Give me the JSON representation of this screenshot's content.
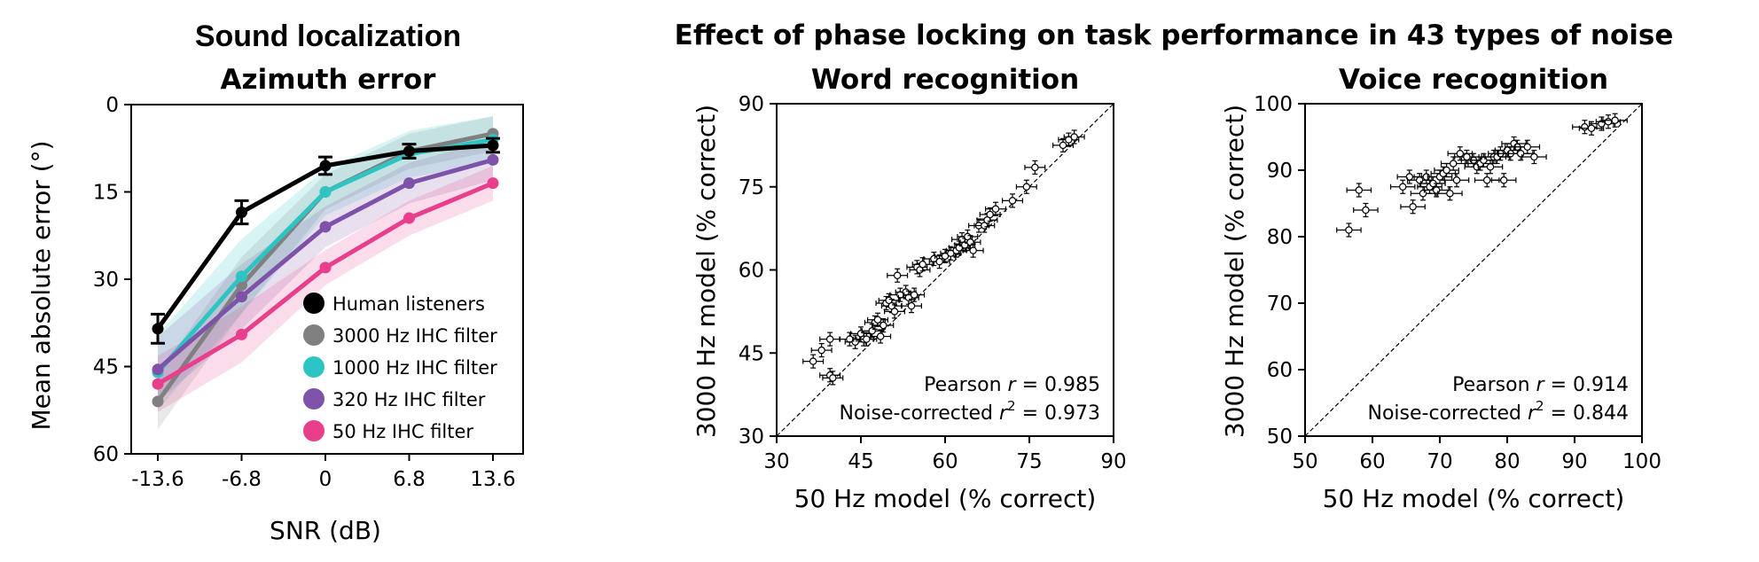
{
  "header": {
    "left_title": "Sound localization",
    "right_title": "Effect of phase locking on task performance in 43 types of noise"
  },
  "chart_data": [
    {
      "type": "line",
      "title": "Azimuth error",
      "xlabel": "SNR (dB)",
      "ylabel": "Mean absolute error (°)",
      "categories": [
        "-13.6",
        "-6.8",
        "0",
        "6.8",
        "13.6"
      ],
      "ylim": [
        60,
        0
      ],
      "yticks": [
        "0",
        "15",
        "30",
        "45",
        "60"
      ],
      "legend": "lower-right",
      "grid": false,
      "series": [
        {
          "name": "Human listeners",
          "color": "#000000",
          "values": [
            38.5,
            18.5,
            10.5,
            8.0,
            7.0
          ],
          "errors": [
            2.5,
            2.0,
            1.5,
            1.2,
            1.2
          ]
        },
        {
          "name": "3000 Hz IHC filter",
          "color": "#808080",
          "values": [
            51,
            31,
            15,
            8,
            5
          ],
          "band": 3.0
        },
        {
          "name": "1000 Hz IHC filter",
          "color": "#2ec4c4",
          "values": [
            46,
            29.5,
            15,
            8.5,
            6
          ],
          "band": 4.0
        },
        {
          "name": "320 Hz IHC filter",
          "color": "#7d52a8",
          "values": [
            45.5,
            33,
            21,
            13.5,
            9.5
          ],
          "band": 3.5
        },
        {
          "name": "50 Hz IHC filter",
          "color": "#e83e8c",
          "values": [
            48,
            39.5,
            28,
            19.5,
            13.5
          ],
          "band": 3.0
        }
      ]
    },
    {
      "type": "scatter",
      "title": "Word recognition",
      "xlabel": "50 Hz model (% correct)",
      "ylabel": "3000 Hz model (% correct)",
      "xlim": [
        30,
        90
      ],
      "ylim": [
        30,
        90
      ],
      "xticks": [
        "30",
        "45",
        "60",
        "75",
        "90"
      ],
      "yticks": [
        "30",
        "45",
        "60",
        "75",
        "90"
      ],
      "annotation_line1_prefix": "Pearson ",
      "annotation_line1_var": "r",
      "annotation_line1_value": " = 0.985",
      "annotation_line2_prefix": "Noise-corrected ",
      "annotation_line2_var": "r",
      "annotation_line2_exp": "2",
      "annotation_line2_value": " = 0.973",
      "x": [
        36.5,
        38,
        39.5,
        39.5,
        40,
        43,
        44,
        45,
        45.5,
        46,
        47,
        47.5,
        48,
        48.5,
        49,
        49.5,
        50,
        50.5,
        51,
        51.5,
        52,
        53,
        53.5,
        54,
        54.5,
        55,
        55.5,
        56,
        58,
        59,
        60,
        61,
        62,
        62.5,
        63,
        63.5,
        64,
        64.5,
        65,
        66,
        67,
        67.5,
        68,
        69,
        72,
        74.5,
        76,
        81,
        82,
        83
      ],
      "y": [
        43.5,
        45.5,
        47.5,
        41,
        40.5,
        47.5,
        47,
        48.5,
        47.5,
        47.5,
        49,
        50.5,
        51,
        48,
        50,
        54,
        54.5,
        53.5,
        52.5,
        59,
        55.5,
        56,
        55,
        53.5,
        55.5,
        60.5,
        60,
        61,
        62,
        61.5,
        62.5,
        63,
        63.5,
        64,
        65.5,
        64.5,
        66,
        65,
        63.5,
        68,
        68,
        69,
        70,
        71,
        72.5,
        75,
        78.5,
        82.5,
        83.5,
        84
      ],
      "x_err": 1.8,
      "y_err": 1.2
    },
    {
      "type": "scatter",
      "title": "Voice recognition",
      "xlabel": "50 Hz model (% correct)",
      "ylabel": "3000 Hz model (% correct)",
      "xlim": [
        50,
        100
      ],
      "ylim": [
        50,
        100
      ],
      "xticks": [
        "50",
        "60",
        "70",
        "80",
        "90",
        "100"
      ],
      "yticks": [
        "50",
        "60",
        "70",
        "80",
        "90",
        "100"
      ],
      "annotation_line1_prefix": "Pearson ",
      "annotation_line1_var": "r",
      "annotation_line1_value": " = 0.914",
      "annotation_line2_prefix": "Noise-corrected ",
      "annotation_line2_var": "r",
      "annotation_line2_exp": "2",
      "annotation_line2_value": " = 0.844",
      "x": [
        56.5,
        58,
        59,
        64.5,
        65.5,
        66,
        67,
        67.5,
        68,
        68.5,
        69,
        69.5,
        70,
        70.5,
        71,
        71.5,
        72,
        72.5,
        73,
        74,
        75,
        75.5,
        76,
        76.5,
        77,
        77.5,
        78,
        78.5,
        79,
        79.5,
        80,
        80.5,
        81,
        81.5,
        82,
        83,
        84,
        91.5,
        92.5,
        94,
        95,
        96
      ],
      "y": [
        81,
        87,
        84,
        87.5,
        89,
        84.5,
        88.5,
        86.5,
        89,
        87.5,
        88,
        87,
        89,
        89.5,
        90,
        86.5,
        91,
        88.5,
        92.5,
        92,
        91.5,
        90.5,
        91,
        91.5,
        88.5,
        90.5,
        92,
        92,
        92.5,
        88.5,
        93,
        92.5,
        94,
        93.5,
        92.5,
        93.5,
        92,
        96.5,
        96.3,
        97,
        97.3,
        97.5
      ],
      "x_err": 1.8,
      "y_err": 1.0
    }
  ]
}
